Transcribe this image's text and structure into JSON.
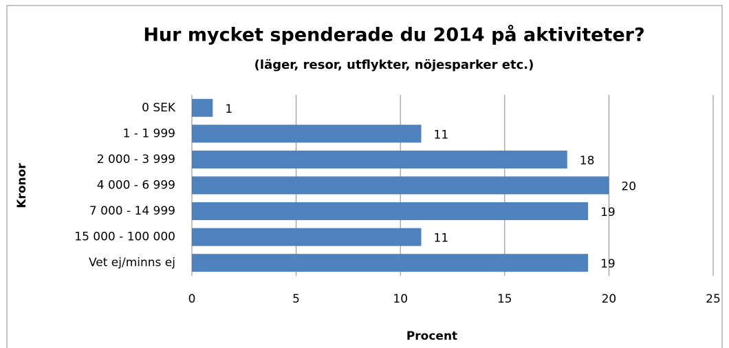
{
  "chart_data": {
    "type": "bar",
    "orientation": "horizontal",
    "title": "Hur mycket spenderade du 2014 på aktiviteter?",
    "subtitle": "(läger, resor, utflykter, nöjesparker etc.)",
    "x_label": "Procent",
    "y_label": "Kronor",
    "categories": [
      "0 SEK",
      "1 - 1 999",
      "2 000 - 3 999",
      "4 000 - 6 999",
      "7 000 - 14 999",
      "15 000 - 100 000",
      "Vet ej/minns ej"
    ],
    "values": [
      1,
      11,
      18,
      20,
      19,
      11,
      19
    ],
    "color": "#4f81bd",
    "xlim": [
      0,
      25
    ],
    "xticks": [
      0,
      5,
      10,
      15,
      20,
      25
    ],
    "grid": true
  }
}
